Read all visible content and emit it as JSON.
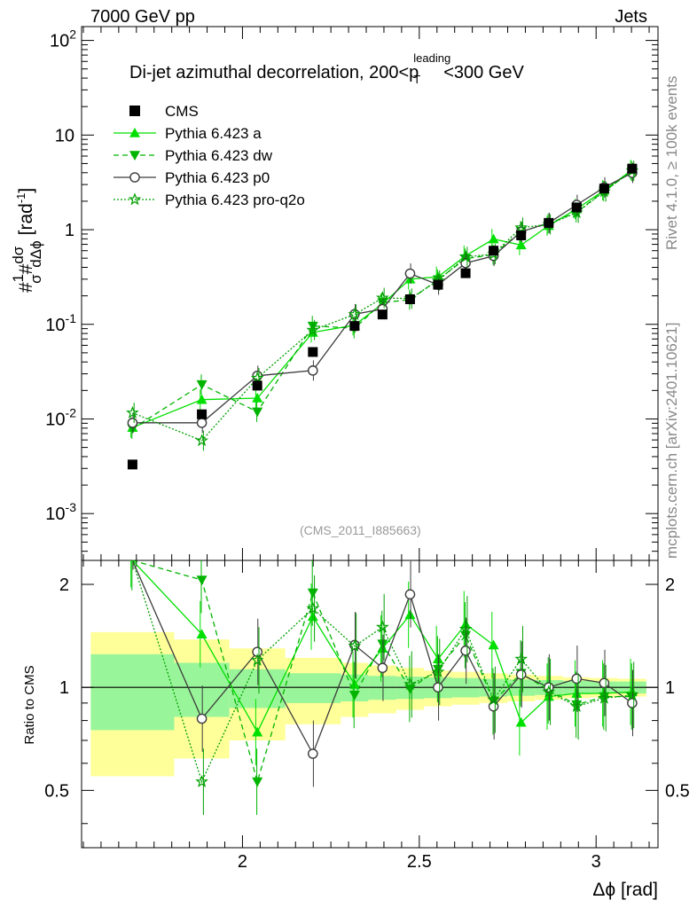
{
  "header": {
    "left": "7000 GeV pp",
    "right": "Jets",
    "rivet": "Rivet 4.1.0, ≥ 100k events",
    "mcplots": "mcplots.cern.ch [arXiv:2401.10621]",
    "analysis": "(CMS_2011_I885663)"
  },
  "title": {
    "main": "Di-jet azimuthal decorrelation, 200<p",
    "sub": "T",
    "sup": "leading",
    "end": "<300 GeV"
  },
  "legend": {
    "cms": "CMS",
    "a": "Pythia 6.423 a",
    "dw": "Pythia 6.423 dw",
    "p0": "Pythia 6.423 p0",
    "proq2o": "Pythia 6.423 pro-q2o"
  },
  "axes": {
    "ylabel_pre": "#",
    "ylabel_num": "1",
    "ylabel_den": "σ",
    "ylabel_mid": "#",
    "ylabel_dnum": "dσ",
    "ylabel_dden": "dΔϕ",
    "ylabel_unit": "[rad",
    "ylabel_exp": "-1",
    "ylabel_close": "]",
    "ratio_label": "Ratio to CMS",
    "xlabel": "Δϕ [rad]",
    "xticks": [
      "2",
      "2.5",
      "3"
    ],
    "yticks": [
      {
        "base": "10",
        "exp": "-3"
      },
      {
        "base": "10",
        "exp": "-2"
      },
      {
        "base": "10",
        "exp": "-1"
      },
      {
        "base": "1",
        "exp": ""
      },
      {
        "base": "10",
        "exp": ""
      },
      {
        "base": "10",
        "exp": "2"
      }
    ],
    "rticks": [
      "0.5",
      "1",
      "2"
    ]
  },
  "chart_data": {
    "type": "line",
    "title": "Di-jet azimuthal decorrelation, 200<pT leading<300 GeV",
    "xlabel": "Δϕ [rad]",
    "ylabel": "1/σ dσ/dΔϕ [rad^-1]",
    "xlim": [
      1.545,
      3.175
    ],
    "ylim": [
      0.00032,
      140
    ],
    "yscale": "log",
    "ratio_ylim": [
      0.34,
      2.35
    ],
    "x": [
      1.689,
      1.885,
      2.042,
      2.199,
      2.317,
      2.396,
      2.474,
      2.553,
      2.631,
      2.71,
      2.788,
      2.866,
      2.945,
      3.023,
      3.102
    ],
    "cms": {
      "values": [
        0.0033,
        0.0112,
        0.0225,
        0.051,
        0.096,
        0.127,
        0.184,
        0.262,
        0.347,
        0.6,
        0.87,
        1.18,
        1.72,
        2.72,
        4.42
      ],
      "bin_edges": [
        1.571,
        1.807,
        1.963,
        2.121,
        2.278,
        2.356,
        2.435,
        2.513,
        2.592,
        2.67,
        2.749,
        2.827,
        2.906,
        2.984,
        3.063,
        3.142
      ],
      "band_inner": [
        0.25,
        0.18,
        0.13,
        0.1,
        0.09,
        0.08,
        0.075,
        0.07,
        0.065,
        0.06,
        0.055,
        0.05,
        0.045,
        0.04,
        0.04
      ],
      "band_outer": [
        0.45,
        0.38,
        0.3,
        0.22,
        0.18,
        0.16,
        0.14,
        0.12,
        0.11,
        0.1,
        0.09,
        0.08,
        0.07,
        0.065,
        0.06
      ]
    },
    "series": [
      {
        "name": "Pythia 6.423 a",
        "color": "#00e000",
        "dash": "",
        "marker": "triangle-up",
        "values": [
          0.0081,
          0.016,
          0.0166,
          0.082,
          0.098,
          0.165,
          0.3,
          0.318,
          0.531,
          0.796,
          0.688,
          1.104,
          1.656,
          2.61,
          4.29
        ],
        "ratio": [
          2.45,
          1.43,
          0.74,
          1.61,
          1.02,
          1.3,
          1.63,
          1.21,
          1.53,
          1.33,
          0.79,
          0.94,
          0.96,
          0.96,
          0.97
        ]
      },
      {
        "name": "Pythia 6.423 dw",
        "color": "#00b400",
        "dash": "6,4",
        "marker": "triangle-down",
        "values": [
          0.0079,
          0.0231,
          0.0119,
          0.096,
          0.091,
          0.17,
          0.182,
          0.297,
          0.494,
          0.544,
          0.96,
          1.16,
          1.53,
          2.56,
          4.16
        ],
        "ratio": [
          2.4,
          2.06,
          0.53,
          1.89,
          0.95,
          1.34,
          0.99,
          1.13,
          1.42,
          0.91,
          1.1,
          0.98,
          0.89,
          0.94,
          0.94
        ]
      },
      {
        "name": "Pythia 6.423 p0",
        "color": "#3c3c3c",
        "dash": "",
        "marker": "circle-open",
        "values": [
          0.0091,
          0.0091,
          0.0286,
          0.0325,
          0.128,
          0.145,
          0.344,
          0.262,
          0.444,
          0.528,
          0.95,
          1.18,
          1.83,
          2.8,
          3.98
        ],
        "ratio": [
          2.76,
          0.81,
          1.27,
          0.64,
          1.33,
          1.14,
          1.87,
          1.0,
          1.28,
          0.88,
          1.09,
          1.0,
          1.06,
          1.03,
          0.9
        ]
      },
      {
        "name": "Pythia 6.423 pro-q2o",
        "color": "#00a000",
        "dash": "2,2",
        "marker": "star",
        "values": [
          0.0116,
          0.0059,
          0.027,
          0.087,
          0.127,
          0.19,
          0.187,
          0.29,
          0.515,
          0.553,
          1.05,
          1.14,
          1.51,
          2.53,
          4.2
        ],
        "ratio": [
          3.51,
          0.53,
          1.2,
          1.7,
          1.32,
          1.5,
          1.02,
          1.11,
          1.48,
          0.92,
          1.21,
          0.97,
          0.88,
          0.93,
          0.95
        ]
      }
    ]
  }
}
